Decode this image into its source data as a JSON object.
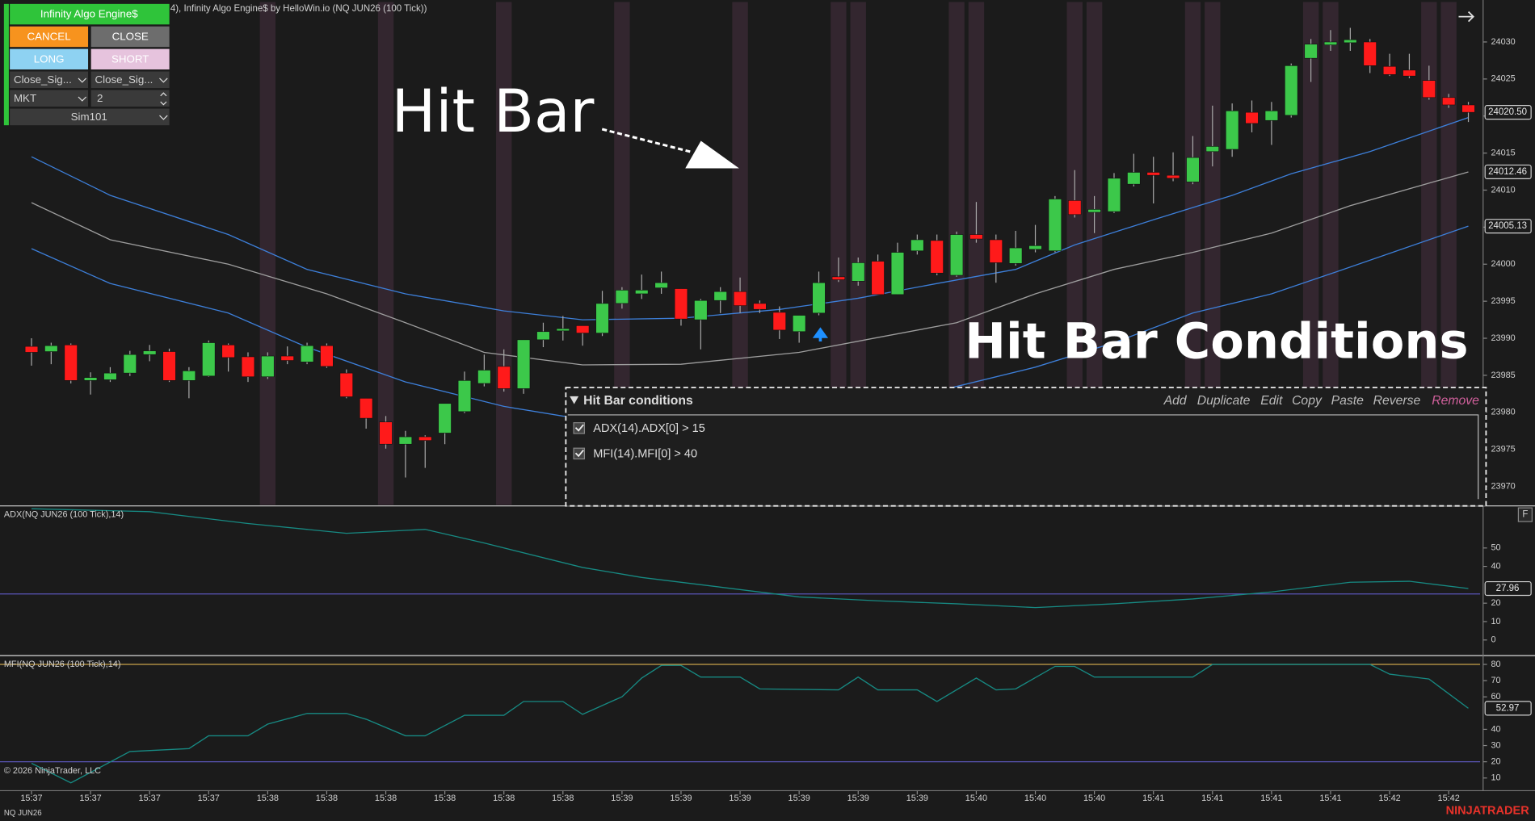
{
  "toolbar": {
    "title": "Infinity Algo Engine$",
    "buttons": [
      "CANCEL",
      "CLOSE",
      "LONG",
      "SHORT"
    ],
    "dropdowns": [
      "Close_Sig...",
      "Close_Sig...",
      "MKT",
      "2",
      "Sim101"
    ]
  },
  "annotations": {
    "hit_bar": "Hit Bar",
    "hit_bar_conditions": "Hit Bar Conditions"
  },
  "dialog": {
    "title": "Hit Bar conditions",
    "actions": [
      "Add",
      "Duplicate",
      "Edit",
      "Copy",
      "Paste",
      "Reverse",
      "Remove"
    ],
    "conditions": [
      "ADX(14).ADX[0] > 15",
      "MFI(14).MFI[0] > 40"
    ]
  },
  "panel_button": "F",
  "footer": {
    "copyright": "© 2026 NinjaTrader, LLC",
    "instrument": "NQ JUN26",
    "brand": "NINJATRADER"
  },
  "chart_data": [
    {
      "type": "candlestick",
      "title": "4), Infinity Algo Engine$ by HelloWin.io (NQ JUN26 (100 Tick))",
      "open": [
        23988.9,
        23988.2,
        23989.1,
        23984.3,
        23984.4,
        23985.3,
        23987.8,
        23988.2,
        23984.3,
        23984.9,
        23989.1,
        23987.5,
        23984.8,
        23987.6,
        23986.8,
        23989.0,
        23985.3,
        23981.9,
        23978.7,
        23975.7,
        23976.7,
        23977.2,
        23980.1,
        23983.9,
        23986.2,
        23983.2,
        23989.8,
        23991.0,
        23991.7,
        23990.7,
        23994.7,
        23996.0,
        23996.8,
        23996.7,
        23992.5,
        23995.1,
        23996.3,
        23994.7,
        23993.5,
        23990.9,
        23993.4,
        23998.3,
        23997.7,
        24000.4,
        23995.9,
        24001.8,
        24003.2,
        23998.5,
        24004.0,
        24003.3,
        24000.1,
        24002.0,
        24001.8,
        24008.6,
        24007.0,
        24007.1,
        24010.8,
        24012.4,
        24012.0,
        24011.1,
        24015.2,
        24015.5,
        24020.5,
        24019.4,
        24020.1,
        24027.8,
        24029.6,
        24029.9,
        24030.0,
        24026.7,
        24026.2,
        24024.8,
        24022.5,
        24021.5
      ],
      "high": [
        23990.0,
        23989.4,
        23989.3,
        23985.4,
        23986.1,
        23988.3,
        23989.1,
        23988.6,
        23986.1,
        23989.7,
        23989.3,
        23988.1,
        23988.1,
        23988.9,
        23989.4,
        23989.3,
        23985.8,
        23981.9,
        23979.5,
        23977.5,
        23976.9,
        23981.2,
        23985.5,
        23987.8,
        23988.5,
        23989.8,
        23992.1,
        23993.0,
        23991.7,
        23996.4,
        23996.9,
        23998.6,
        23999.0,
        23996.7,
        23995.3,
        23996.9,
        23998.2,
        23995.1,
        23994.3,
        23993.1,
        23999.0,
        24000.9,
        24000.9,
        24001.3,
        24002.9,
        24004.0,
        24004.0,
        24004.4,
        24008.4,
        24004.0,
        24004.5,
        24005.3,
        24009.2,
        24012.7,
        24009.2,
        24012.3,
        24014.9,
        24014.5,
        24015.1,
        24017.3,
        24021.4,
        24021.7,
        24022.1,
        24021.9,
        24027.1,
        24030.4,
        24031.6,
        24031.9,
        24030.4,
        24028.4,
        24028.4,
        24026.8,
        24023.0,
        24021.9
      ],
      "low": [
        23986.3,
        23986.5,
        23983.9,
        23982.4,
        23984.1,
        23984.9,
        23986.9,
        23984.1,
        23981.9,
        23984.8,
        23985.5,
        23984.1,
        23984.5,
        23986.5,
        23986.5,
        23986.0,
        23981.9,
        23977.8,
        23975.1,
        23971.2,
        23972.5,
        23975.7,
        23979.9,
        23983.5,
        23982.8,
        23982.5,
        23988.8,
        23989.7,
        23989.0,
        23990.3,
        23994.0,
        23995.3,
        23996.0,
        23991.7,
        23988.5,
        23993.4,
        23993.4,
        23993.4,
        23989.9,
        23989.4,
        23993.1,
        23997.6,
        23997.1,
        23995.9,
        23995.9,
        24001.3,
        23998.5,
        23998.3,
        24002.9,
        23997.5,
        23999.8,
        24001.6,
        24001.6,
        24006.3,
        24004.2,
        24006.9,
        24010.5,
        24008.2,
        24011.2,
        24010.8,
        24013.2,
        24014.5,
        24017.8,
        24016.1,
        24019.8,
        24024.6,
        24028.8,
        24028.8,
        24025.8,
        24025.4,
        24025.1,
        24022.2,
        24021.1,
        24019.2
      ],
      "close": [
        23988.1,
        23989.0,
        23984.3,
        23984.7,
        23985.3,
        23987.8,
        23988.3,
        23984.3,
        23985.6,
        23989.4,
        23987.4,
        23984.8,
        23987.6,
        23987.0,
        23989.0,
        23986.2,
        23982.1,
        23979.2,
        23975.7,
        23976.7,
        23976.2,
        23981.2,
        23984.3,
        23985.7,
        23983.2,
        23989.8,
        23990.9,
        23991.3,
        23990.7,
        23994.7,
        23996.5,
        23996.5,
        23997.5,
        23992.6,
        23995.1,
        23996.3,
        23994.4,
        23993.9,
        23991.1,
        23993.1,
        23997.5,
        23997.9,
        24000.2,
        23995.9,
        24001.6,
        24003.3,
        23998.8,
        24004.0,
        24003.4,
        24000.2,
        24002.2,
        24002.5,
        24008.8,
        24006.7,
        24007.4,
        24011.6,
        24012.4,
        24012.0,
        24011.6,
        24014.4,
        24015.9,
        24020.7,
        24019.0,
        24020.7,
        24026.8,
        24029.7,
        24030.0,
        24030.3,
        24026.8,
        24025.6,
        24025.4,
        24022.5,
        24021.5,
        24020.5
      ],
      "up_color": "#3cc84a",
      "down_color": "#ff1a1a",
      "wick_color": "#a8a8a8",
      "xlim": [
        -1.6,
        73.6
      ],
      "ylim": [
        23967.5,
        24035.4
      ],
      "yticks": [
        23970,
        23975,
        23980,
        23985,
        23990,
        23995,
        24000,
        24005,
        24010,
        24015,
        24020,
        24025,
        24030
      ],
      "highlight_bars": [
        12,
        18,
        24,
        30,
        36,
        41,
        42,
        47,
        48,
        53,
        54,
        59,
        60,
        65,
        66,
        71,
        72
      ],
      "highlight_color": "#33262f",
      "series": [
        {
          "x": [
            0,
            4,
            10,
            14,
            19,
            24,
            28,
            33,
            38,
            42,
            46,
            50,
            53,
            57,
            61,
            64,
            68,
            73
          ],
          "values": [
            24014.5,
            24009.3,
            24004.0,
            23999.3,
            23996.0,
            23993.7,
            23992.5,
            23992.7,
            23993.9,
            23995.4,
            23997.4,
            23999.3,
            24002.6,
            24006.0,
            24009.3,
            24012.2,
            24015.2,
            24019.8
          ],
          "color": "#3d7fd9"
        },
        {
          "x": [
            0,
            4,
            10,
            15,
            19,
            23,
            28,
            33,
            39,
            43,
            47,
            51,
            55,
            59,
            63,
            67,
            73
          ],
          "values": [
            24008.3,
            24003.3,
            24000.0,
            23996.0,
            23992.1,
            23988.1,
            23986.4,
            23986.5,
            23988.1,
            23990.1,
            23992.1,
            23996.0,
            23999.3,
            24001.6,
            24004.2,
            24007.9,
            24012.46
          ],
          "color": "#9e9e9e",
          "end_label": true
        },
        {
          "x": [
            0,
            4,
            10,
            14,
            19,
            24,
            27,
            33,
            38,
            43,
            47,
            51,
            55,
            59,
            63,
            66,
            73
          ],
          "values": [
            24002.1,
            23997.4,
            23993.4,
            23988.8,
            23984.1,
            23980.8,
            23979.5,
            23978.9,
            23979.5,
            23980.8,
            23983.5,
            23986.1,
            23989.4,
            23993.4,
            23996.0,
            23998.7,
            24005.13
          ],
          "color": "#3d7fd9",
          "end_label": true
        }
      ],
      "last_price": {
        "value": 24020.5,
        "label": "24020.50"
      }
    },
    {
      "type": "line",
      "title": "ADX(NQ JUN26 (100 Tick),14)",
      "xlim": [
        -1.6,
        73.6
      ],
      "ylim": [
        -8.5,
        71.8
      ],
      "yticks": [
        0,
        10,
        20,
        40,
        50
      ],
      "levels": [
        {
          "value": 25,
          "color": "#5b56b8"
        }
      ],
      "series": [
        {
          "x": [
            0,
            6,
            11,
            16,
            20,
            23,
            28,
            31,
            35,
            39,
            43,
            47,
            51,
            55,
            59,
            63,
            67,
            70,
            73
          ],
          "values": [
            71.3,
            69.7,
            63.3,
            58.0,
            60.1,
            52.7,
            39.4,
            34.0,
            28.7,
            23.4,
            21.3,
            19.7,
            17.6,
            19.7,
            22.3,
            26.1,
            31.4,
            31.9,
            27.96
          ],
          "color": "#178a83",
          "end_label": true
        }
      ]
    },
    {
      "type": "line",
      "title": "MFI(NQ JUN26 (100 Tick),14)",
      "xlim": [
        -1.6,
        73.6
      ],
      "ylim": [
        2.2,
        84.2
      ],
      "yticks": [
        10,
        20,
        30,
        40,
        60,
        70,
        80
      ],
      "levels": [
        {
          "value": 80,
          "color": "#c9a24a"
        },
        {
          "value": 20,
          "color": "#5b56b8"
        }
      ],
      "series": [
        {
          "x": [
            0,
            2,
            5,
            8,
            9,
            11,
            12,
            14,
            16,
            17,
            19,
            20,
            22,
            24,
            25,
            27,
            28,
            30,
            31,
            32,
            33,
            34,
            36,
            37,
            41,
            42,
            43,
            45,
            46,
            48,
            49,
            50,
            52,
            53,
            54,
            56,
            59,
            60,
            68,
            69,
            71,
            73
          ],
          "values": [
            19.1,
            7,
            26.3,
            28.1,
            36,
            36,
            43.2,
            49.8,
            49.8,
            46.2,
            36,
            36,
            48.6,
            48.6,
            57.1,
            57.1,
            49.2,
            60.1,
            71.6,
            79.4,
            79.4,
            72.2,
            72.2,
            64.9,
            64.3,
            72.2,
            64.3,
            64.3,
            57.1,
            71.6,
            64.3,
            64.9,
            78.8,
            78.8,
            72.2,
            72.2,
            72.2,
            80,
            80,
            74,
            71,
            52.97
          ],
          "color": "#178a83",
          "end_label": true
        }
      ],
      "xticks": [
        {
          "value": 0,
          "label": "15:37"
        },
        {
          "value": 3,
          "label": "15:37"
        },
        {
          "value": 6,
          "label": "15:37"
        },
        {
          "value": 9,
          "label": "15:37"
        },
        {
          "value": 12,
          "label": "15:38"
        },
        {
          "value": 15,
          "label": "15:38"
        },
        {
          "value": 18,
          "label": "15:38"
        },
        {
          "value": 21,
          "label": "15:38"
        },
        {
          "value": 24,
          "label": "15:38"
        },
        {
          "value": 27,
          "label": "15:38"
        },
        {
          "value": 30,
          "label": "15:39"
        },
        {
          "value": 33,
          "label": "15:39"
        },
        {
          "value": 36,
          "label": "15:39"
        },
        {
          "value": 39,
          "label": "15:39"
        },
        {
          "value": 42,
          "label": "15:39"
        },
        {
          "value": 45,
          "label": "15:39"
        },
        {
          "value": 48,
          "label": "15:40"
        },
        {
          "value": 51,
          "label": "15:40"
        },
        {
          "value": 54,
          "label": "15:40"
        },
        {
          "value": 57,
          "label": "15:41"
        },
        {
          "value": 60,
          "label": "15:41"
        },
        {
          "value": 63,
          "label": "15:41"
        },
        {
          "value": 66,
          "label": "15:41"
        },
        {
          "value": 69,
          "label": "15:42"
        },
        {
          "value": 72,
          "label": "15:42"
        }
      ]
    }
  ]
}
